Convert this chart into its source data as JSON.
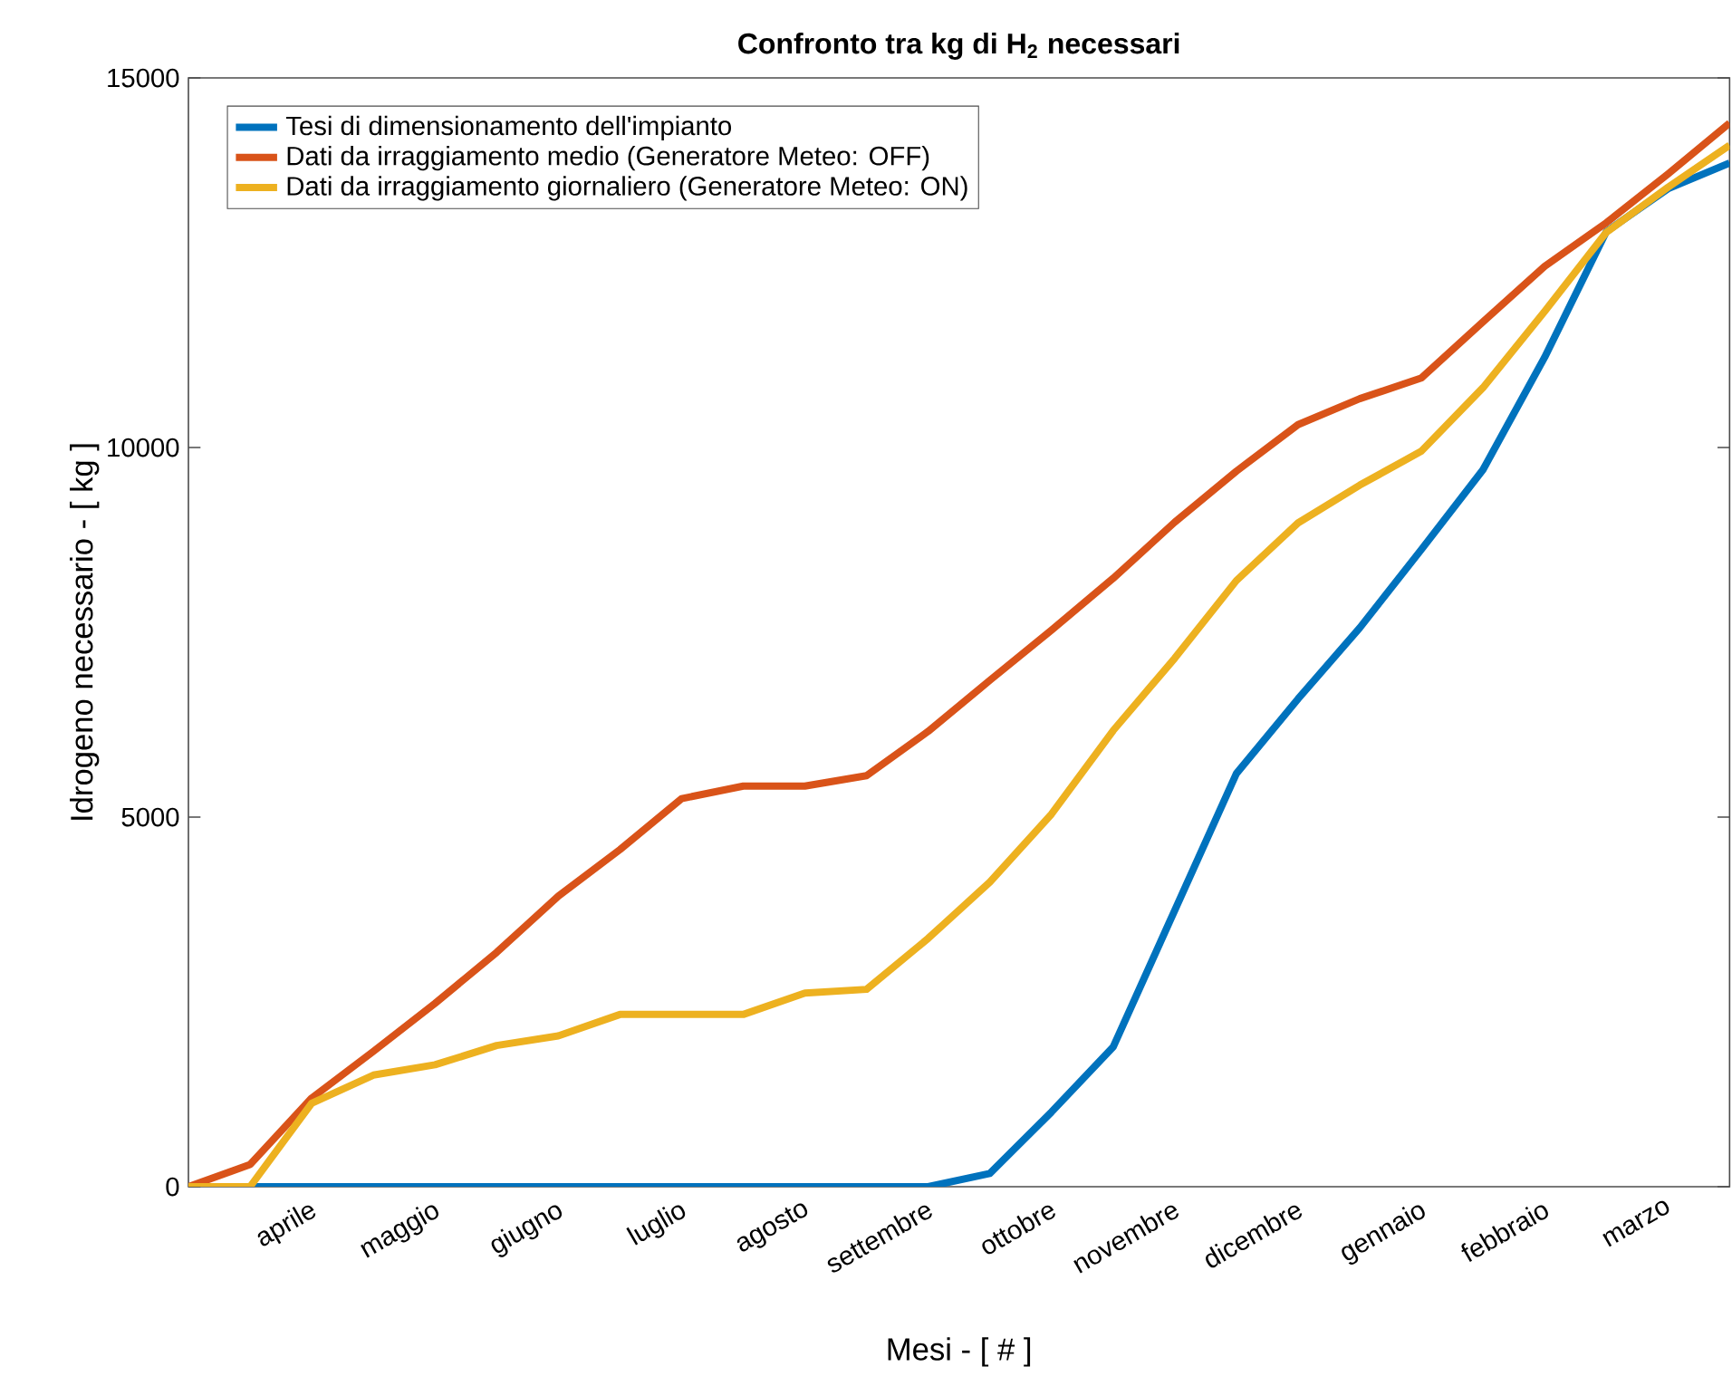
{
  "chart_data": {
    "type": "line",
    "title": "Confronto tra kg di H$_{2}$ necessari",
    "xlabel": "Mesi - [ # ]",
    "ylabel": "Idrogeno necessario - [ kg ]",
    "categories": [
      null,
      null,
      "aprile",
      null,
      "maggio",
      null,
      "giugno",
      null,
      "luglio",
      null,
      "agosto",
      null,
      "settembre",
      null,
      "ottobre",
      null,
      "novembre",
      null,
      "dicembre",
      null,
      "gennaio",
      null,
      "febbraio",
      null,
      "marzo",
      null
    ],
    "ylim": [
      0,
      15000
    ],
    "yticks": [
      0,
      5000,
      10000,
      15000
    ],
    "grid": false,
    "legend": "top left",
    "marker": "none",
    "line_style": "solid",
    "series": [
      {
        "name": "Tesi di dimensionamento dell'impianto",
        "color": "#0072bd",
        "values": [
          0,
          0,
          0,
          0,
          0,
          0,
          0,
          0,
          0,
          0,
          0,
          0,
          0,
          180,
          1010,
          1890,
          3740,
          5590,
          6600,
          7560,
          8620,
          9700,
          11220,
          12920,
          13500,
          13850
        ]
      },
      {
        "name": "Dati da irraggiamento medio (Generatore Meteo: OFF)",
        "color": "#d95319",
        "values": [
          0,
          300,
          1200,
          1830,
          2480,
          3170,
          3930,
          4560,
          5250,
          5420,
          5420,
          5560,
          6160,
          6850,
          7530,
          8230,
          8990,
          9680,
          10310,
          10660,
          10940,
          11700,
          12450,
          13040,
          13700,
          14390
        ]
      },
      {
        "name": "Dati da irraggiamento giornaliero (Generatore Meteo: ON)",
        "color": "#edb120",
        "values": [
          0,
          0,
          1130,
          1510,
          1650,
          1910,
          2040,
          2330,
          2330,
          2330,
          2620,
          2670,
          3360,
          4120,
          5040,
          6170,
          7150,
          8200,
          8980,
          9490,
          9950,
          10810,
          11840,
          12910,
          13520,
          14090
        ]
      }
    ]
  }
}
